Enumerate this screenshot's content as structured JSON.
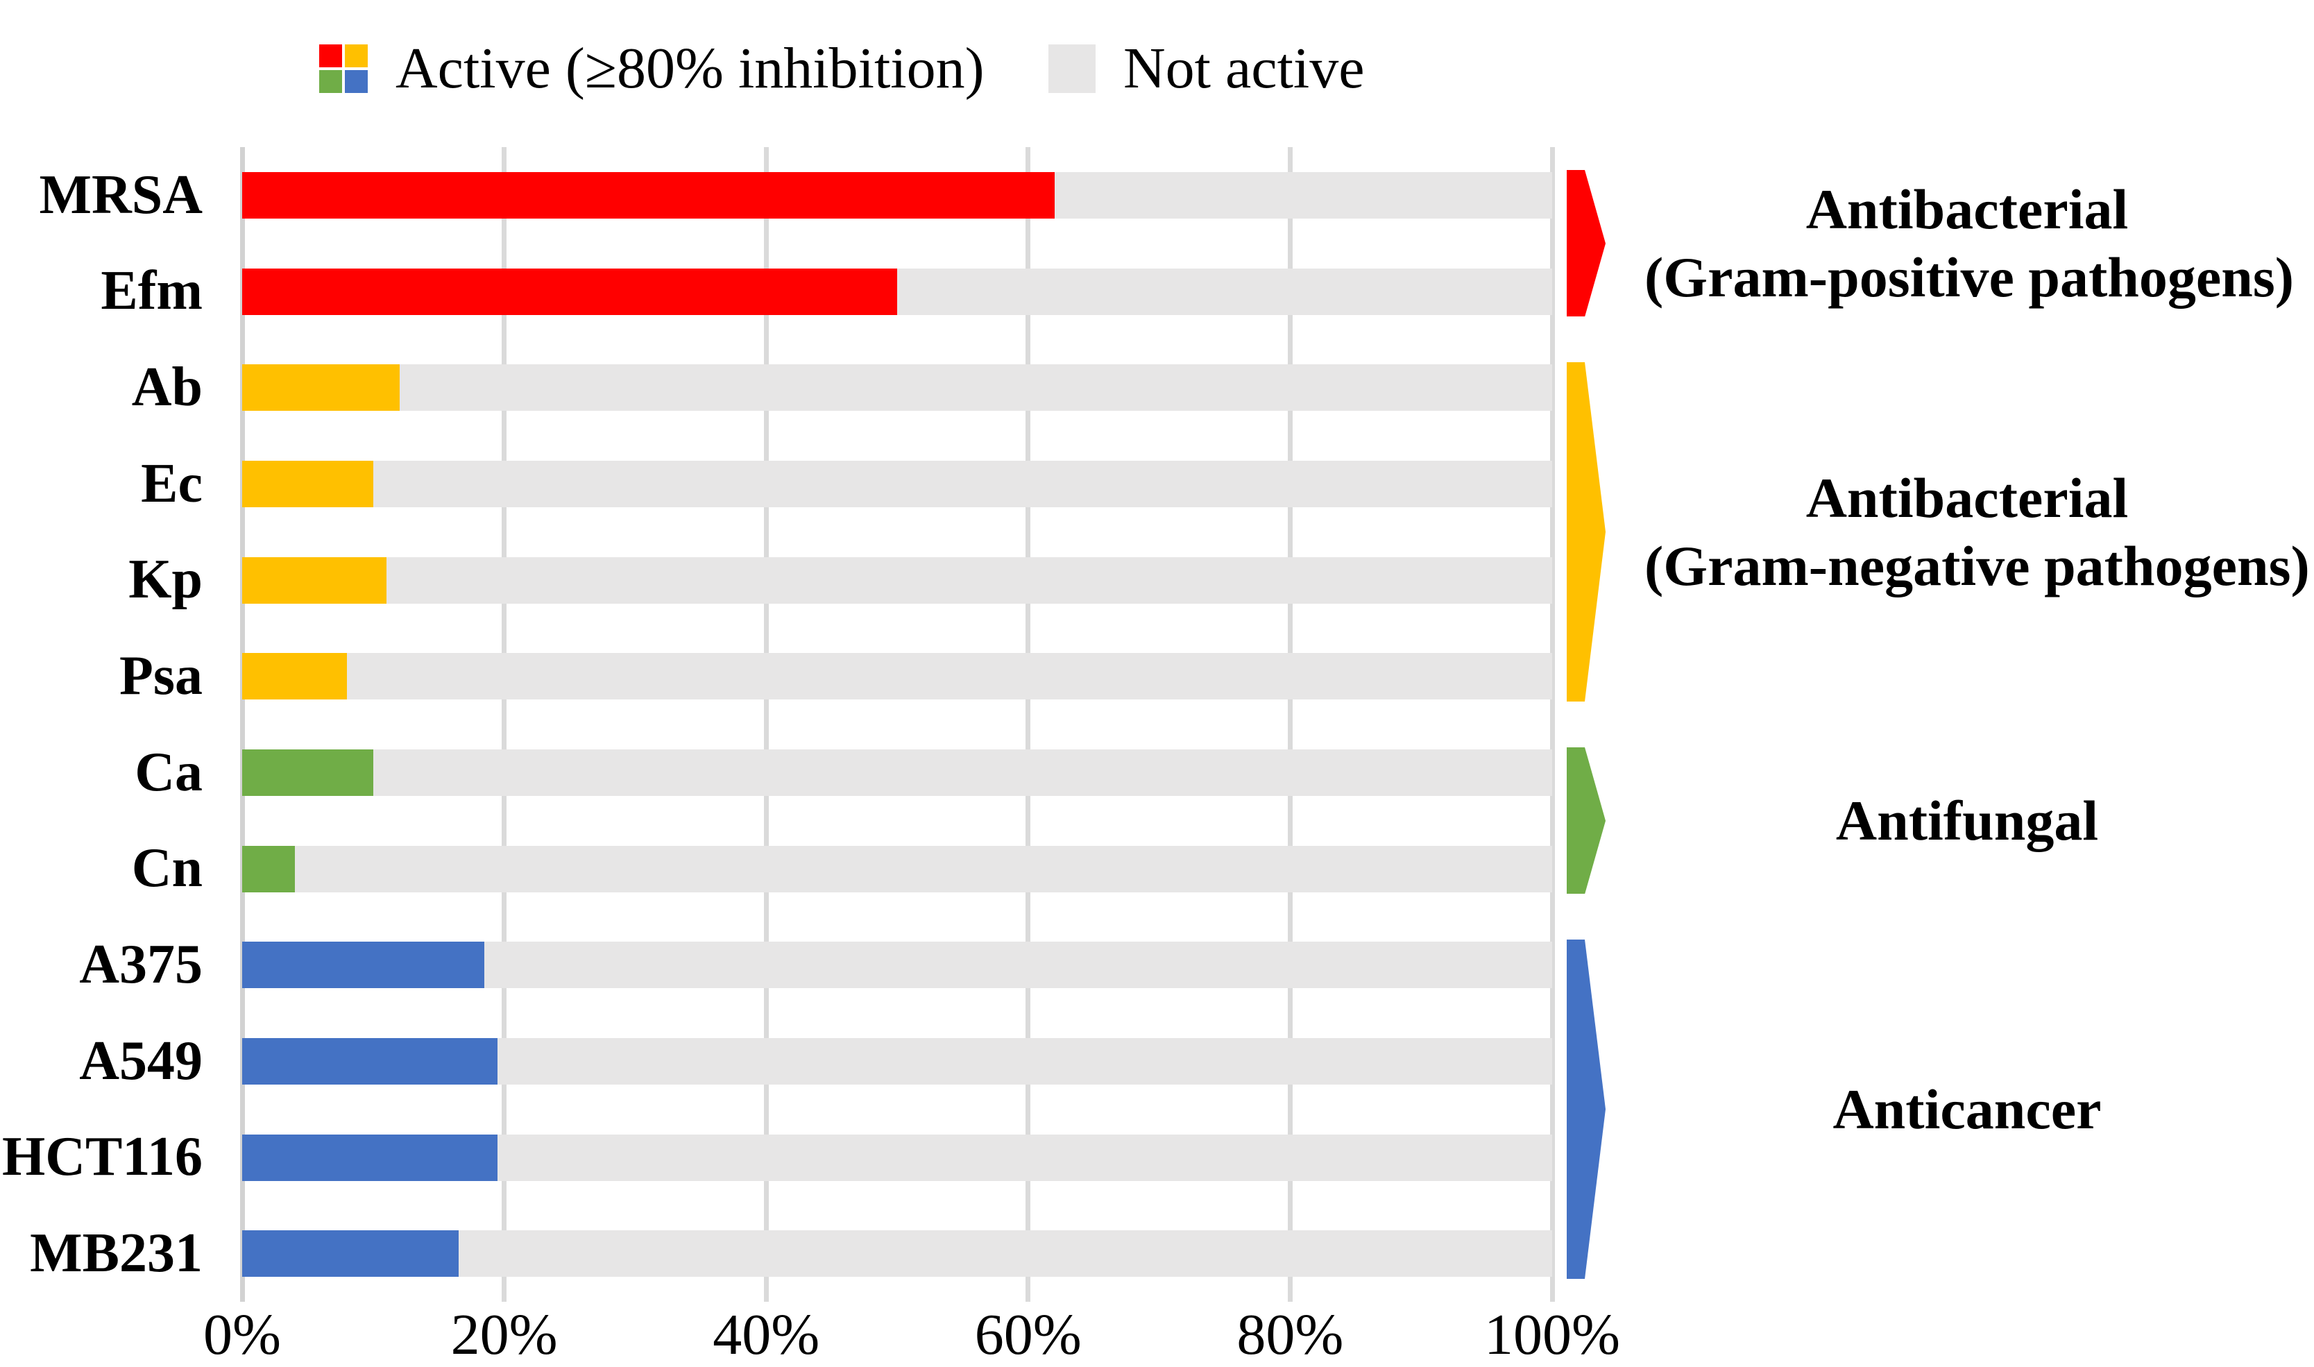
{
  "figure": {
    "background": "#FFFFFF",
    "gridline_color": "#DADADA",
    "axis_line_color": "#D2D2D2"
  },
  "legend": {
    "active_label": "Active (≥80% inhibition)",
    "not_active_label": "Not active",
    "active_swatch_colors": [
      "#FF0000",
      "#FFC000",
      "#70AD47",
      "#4472C4"
    ],
    "not_active_color": "#E7E6E6"
  },
  "x_axis": {
    "tick_labels": [
      "0%",
      "20%",
      "40%",
      "60%",
      "80%",
      "100%"
    ],
    "min": 0,
    "max": 100
  },
  "groups": [
    {
      "label_lines": [
        "Antibacterial",
        "(Gram-positive pathogens)"
      ],
      "color": "#FF0000",
      "first_category": "MRSA",
      "last_category": "Efm"
    },
    {
      "label_lines": [
        "Antibacterial",
        "(Gram-negative pathogens)"
      ],
      "color": "#FFC000",
      "first_category": "Ab",
      "last_category": "Psa"
    },
    {
      "label_lines": [
        "Antifungal"
      ],
      "color": "#70AD47",
      "first_category": "Ca",
      "last_category": "Cn"
    },
    {
      "label_lines": [
        "Anticancer"
      ],
      "color": "#4472C4",
      "first_category": "A375",
      "last_category": "MB231"
    }
  ],
  "chart_data": {
    "type": "bar",
    "orientation": "horizontal",
    "stacked": true,
    "title": "",
    "xlabel": "",
    "ylabel": "",
    "xlim": [
      0,
      100
    ],
    "x_tick_labels": [
      "0%",
      "20%",
      "40%",
      "60%",
      "80%",
      "100%"
    ],
    "grid": "vertical-major",
    "legend_position": "top",
    "categories": [
      "MRSA",
      "Efm",
      "Ab",
      "Ec",
      "Kp",
      "Psa",
      "Ca",
      "Cn",
      "A375",
      "A549",
      "HCT116",
      "MB231"
    ],
    "series": [
      {
        "name": "Active (≥80% inhibition)",
        "values": [
          62,
          50,
          12,
          10,
          11,
          8,
          10,
          4,
          18.5,
          19.5,
          19.5,
          16.5
        ]
      },
      {
        "name": "Not active",
        "values": [
          38,
          50,
          88,
          90,
          89,
          92,
          90,
          96,
          81.5,
          80.5,
          80.5,
          83.5
        ]
      }
    ],
    "category_colors": [
      "#FF0000",
      "#FF0000",
      "#FFC000",
      "#FFC000",
      "#FFC000",
      "#FFC000",
      "#70AD47",
      "#70AD47",
      "#4472C4",
      "#4472C4",
      "#4472C4",
      "#4472C4"
    ]
  }
}
